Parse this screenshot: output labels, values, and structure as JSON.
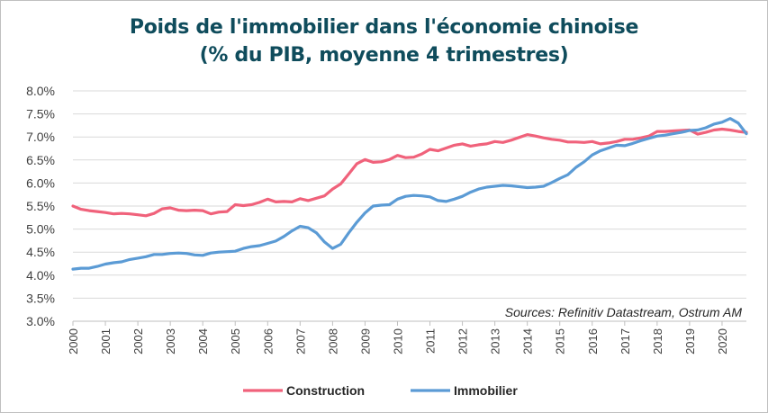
{
  "title_line1": "Poids de l'immobilier dans l'économie chinoise",
  "title_line2": "(% du PIB, moyenne 4 trimestres)",
  "source_note": "Sources: Refinitiv Datastream, Ostrum AM",
  "chart_data": {
    "type": "line",
    "title": "Poids de l'immobilier dans l'économie chinoise (% du PIB, moyenne 4 trimestres)",
    "ylim": [
      3.0,
      8.0
    ],
    "y_ticks": [
      "8.0%",
      "7.5%",
      "7.0%",
      "6.5%",
      "6.0%",
      "5.5%",
      "5.0%",
      "4.5%",
      "4.0%",
      "3.5%",
      "3.0%"
    ],
    "x_ticks": [
      "2000",
      "2001",
      "2002",
      "2003",
      "2004",
      "2005",
      "2006",
      "2007",
      "2008",
      "2009",
      "2010",
      "2011",
      "2012",
      "2013",
      "2014",
      "2015",
      "2016",
      "2017",
      "2018",
      "2019",
      "2020"
    ],
    "xlim": [
      2000.0,
      2020.75
    ],
    "grid": "horizontal",
    "legend_position": "bottom",
    "series": [
      {
        "name": "Construction",
        "color": "#f0627b",
        "points": [
          [
            2000.0,
            5.5
          ],
          [
            2000.25,
            5.43
          ],
          [
            2000.5,
            5.4
          ],
          [
            2000.75,
            5.38
          ],
          [
            2001.0,
            5.36
          ],
          [
            2001.25,
            5.33
          ],
          [
            2001.5,
            5.34
          ],
          [
            2001.75,
            5.33
          ],
          [
            2002.0,
            5.31
          ],
          [
            2002.25,
            5.29
          ],
          [
            2002.5,
            5.34
          ],
          [
            2002.75,
            5.44
          ],
          [
            2003.0,
            5.46
          ],
          [
            2003.25,
            5.41
          ],
          [
            2003.5,
            5.4
          ],
          [
            2003.75,
            5.41
          ],
          [
            2004.0,
            5.4
          ],
          [
            2004.25,
            5.33
          ],
          [
            2004.5,
            5.37
          ],
          [
            2004.75,
            5.38
          ],
          [
            2005.0,
            5.53
          ],
          [
            2005.25,
            5.51
          ],
          [
            2005.5,
            5.53
          ],
          [
            2005.75,
            5.58
          ],
          [
            2006.0,
            5.65
          ],
          [
            2006.25,
            5.59
          ],
          [
            2006.5,
            5.6
          ],
          [
            2006.75,
            5.59
          ],
          [
            2007.0,
            5.66
          ],
          [
            2007.25,
            5.62
          ],
          [
            2007.5,
            5.67
          ],
          [
            2007.75,
            5.72
          ],
          [
            2008.0,
            5.87
          ],
          [
            2008.25,
            5.98
          ],
          [
            2008.5,
            6.2
          ],
          [
            2008.75,
            6.42
          ],
          [
            2009.0,
            6.51
          ],
          [
            2009.25,
            6.45
          ],
          [
            2009.5,
            6.46
          ],
          [
            2009.75,
            6.51
          ],
          [
            2010.0,
            6.6
          ],
          [
            2010.25,
            6.55
          ],
          [
            2010.5,
            6.56
          ],
          [
            2010.75,
            6.63
          ],
          [
            2011.0,
            6.73
          ],
          [
            2011.25,
            6.7
          ],
          [
            2011.5,
            6.76
          ],
          [
            2011.75,
            6.82
          ],
          [
            2012.0,
            6.85
          ],
          [
            2012.25,
            6.8
          ],
          [
            2012.5,
            6.83
          ],
          [
            2012.75,
            6.85
          ],
          [
            2013.0,
            6.9
          ],
          [
            2013.25,
            6.88
          ],
          [
            2013.5,
            6.93
          ],
          [
            2013.75,
            6.99
          ],
          [
            2014.0,
            7.05
          ],
          [
            2014.25,
            7.02
          ],
          [
            2014.5,
            6.98
          ],
          [
            2014.75,
            6.95
          ],
          [
            2015.0,
            6.93
          ],
          [
            2015.25,
            6.89
          ],
          [
            2015.5,
            6.89
          ],
          [
            2015.75,
            6.88
          ],
          [
            2016.0,
            6.9
          ],
          [
            2016.25,
            6.85
          ],
          [
            2016.5,
            6.87
          ],
          [
            2016.75,
            6.9
          ],
          [
            2017.0,
            6.95
          ],
          [
            2017.25,
            6.95
          ],
          [
            2017.5,
            6.98
          ],
          [
            2017.75,
            7.02
          ],
          [
            2018.0,
            7.12
          ],
          [
            2018.25,
            7.12
          ],
          [
            2018.5,
            7.13
          ],
          [
            2018.75,
            7.14
          ],
          [
            2019.0,
            7.15
          ],
          [
            2019.25,
            7.06
          ],
          [
            2019.5,
            7.1
          ],
          [
            2019.75,
            7.15
          ],
          [
            2020.0,
            7.17
          ],
          [
            2020.25,
            7.15
          ],
          [
            2020.5,
            7.12
          ],
          [
            2020.75,
            7.1
          ]
        ]
      },
      {
        "name": "Immobilier",
        "color": "#5b9bd5",
        "points": [
          [
            2000.0,
            4.13
          ],
          [
            2000.25,
            4.15
          ],
          [
            2000.5,
            4.15
          ],
          [
            2000.75,
            4.19
          ],
          [
            2001.0,
            4.24
          ],
          [
            2001.25,
            4.27
          ],
          [
            2001.5,
            4.29
          ],
          [
            2001.75,
            4.34
          ],
          [
            2002.0,
            4.37
          ],
          [
            2002.25,
            4.4
          ],
          [
            2002.5,
            4.45
          ],
          [
            2002.75,
            4.45
          ],
          [
            2003.0,
            4.47
          ],
          [
            2003.25,
            4.48
          ],
          [
            2003.5,
            4.47
          ],
          [
            2003.75,
            4.44
          ],
          [
            2004.0,
            4.43
          ],
          [
            2004.25,
            4.48
          ],
          [
            2004.5,
            4.5
          ],
          [
            2004.75,
            4.51
          ],
          [
            2005.0,
            4.52
          ],
          [
            2005.25,
            4.58
          ],
          [
            2005.5,
            4.62
          ],
          [
            2005.75,
            4.64
          ],
          [
            2006.0,
            4.69
          ],
          [
            2006.25,
            4.74
          ],
          [
            2006.5,
            4.84
          ],
          [
            2006.75,
            4.96
          ],
          [
            2007.0,
            5.06
          ],
          [
            2007.25,
            5.03
          ],
          [
            2007.5,
            4.92
          ],
          [
            2007.75,
            4.72
          ],
          [
            2008.0,
            4.58
          ],
          [
            2008.25,
            4.67
          ],
          [
            2008.5,
            4.92
          ],
          [
            2008.75,
            5.15
          ],
          [
            2009.0,
            5.35
          ],
          [
            2009.25,
            5.5
          ],
          [
            2009.5,
            5.52
          ],
          [
            2009.75,
            5.53
          ],
          [
            2010.0,
            5.65
          ],
          [
            2010.25,
            5.71
          ],
          [
            2010.5,
            5.73
          ],
          [
            2010.75,
            5.72
          ],
          [
            2011.0,
            5.7
          ],
          [
            2011.25,
            5.62
          ],
          [
            2011.5,
            5.6
          ],
          [
            2011.75,
            5.65
          ],
          [
            2012.0,
            5.71
          ],
          [
            2012.25,
            5.8
          ],
          [
            2012.5,
            5.87
          ],
          [
            2012.75,
            5.91
          ],
          [
            2013.0,
            5.93
          ],
          [
            2013.25,
            5.95
          ],
          [
            2013.5,
            5.94
          ],
          [
            2013.75,
            5.92
          ],
          [
            2014.0,
            5.9
          ],
          [
            2014.25,
            5.91
          ],
          [
            2014.5,
            5.93
          ],
          [
            2014.75,
            6.01
          ],
          [
            2015.0,
            6.1
          ],
          [
            2015.25,
            6.18
          ],
          [
            2015.5,
            6.34
          ],
          [
            2015.75,
            6.46
          ],
          [
            2016.0,
            6.61
          ],
          [
            2016.25,
            6.7
          ],
          [
            2016.5,
            6.76
          ],
          [
            2016.75,
            6.82
          ],
          [
            2017.0,
            6.81
          ],
          [
            2017.25,
            6.86
          ],
          [
            2017.5,
            6.92
          ],
          [
            2017.75,
            6.97
          ],
          [
            2018.0,
            7.02
          ],
          [
            2018.25,
            7.04
          ],
          [
            2018.5,
            7.07
          ],
          [
            2018.75,
            7.1
          ],
          [
            2019.0,
            7.14
          ],
          [
            2019.25,
            7.15
          ],
          [
            2019.5,
            7.2
          ],
          [
            2019.75,
            7.28
          ],
          [
            2020.0,
            7.32
          ],
          [
            2020.25,
            7.4
          ],
          [
            2020.5,
            7.3
          ],
          [
            2020.75,
            7.07
          ]
        ]
      }
    ]
  }
}
